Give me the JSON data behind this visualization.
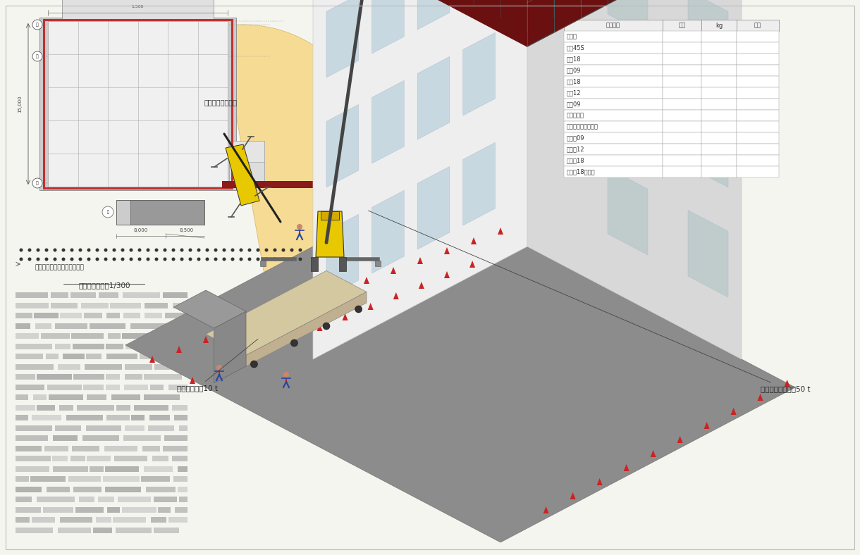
{
  "bg_color": "#f5f5f0",
  "table_headers": [
    "部材名称",
    "数量",
    "kg",
    "重量"
  ],
  "table_rows": [
    "ベース",
    "支析45S",
    "支析18",
    "支析09",
    "手奩18",
    "手奩12",
    "手奩09",
    "ブラケット",
    "ブラケットコマ付き",
    "足場板09",
    "足場板12",
    "足場板18",
    "足場板18ハーフ"
  ],
  "floor_plan_label": "仮設計画平面図1/300",
  "crane_label": "クレーン可動範囲",
  "barricade_label": "バリケード（カラーコーン）",
  "truck_label": "運送トラック10 t",
  "crane_50t_label": "ラフタークレーン50 t"
}
